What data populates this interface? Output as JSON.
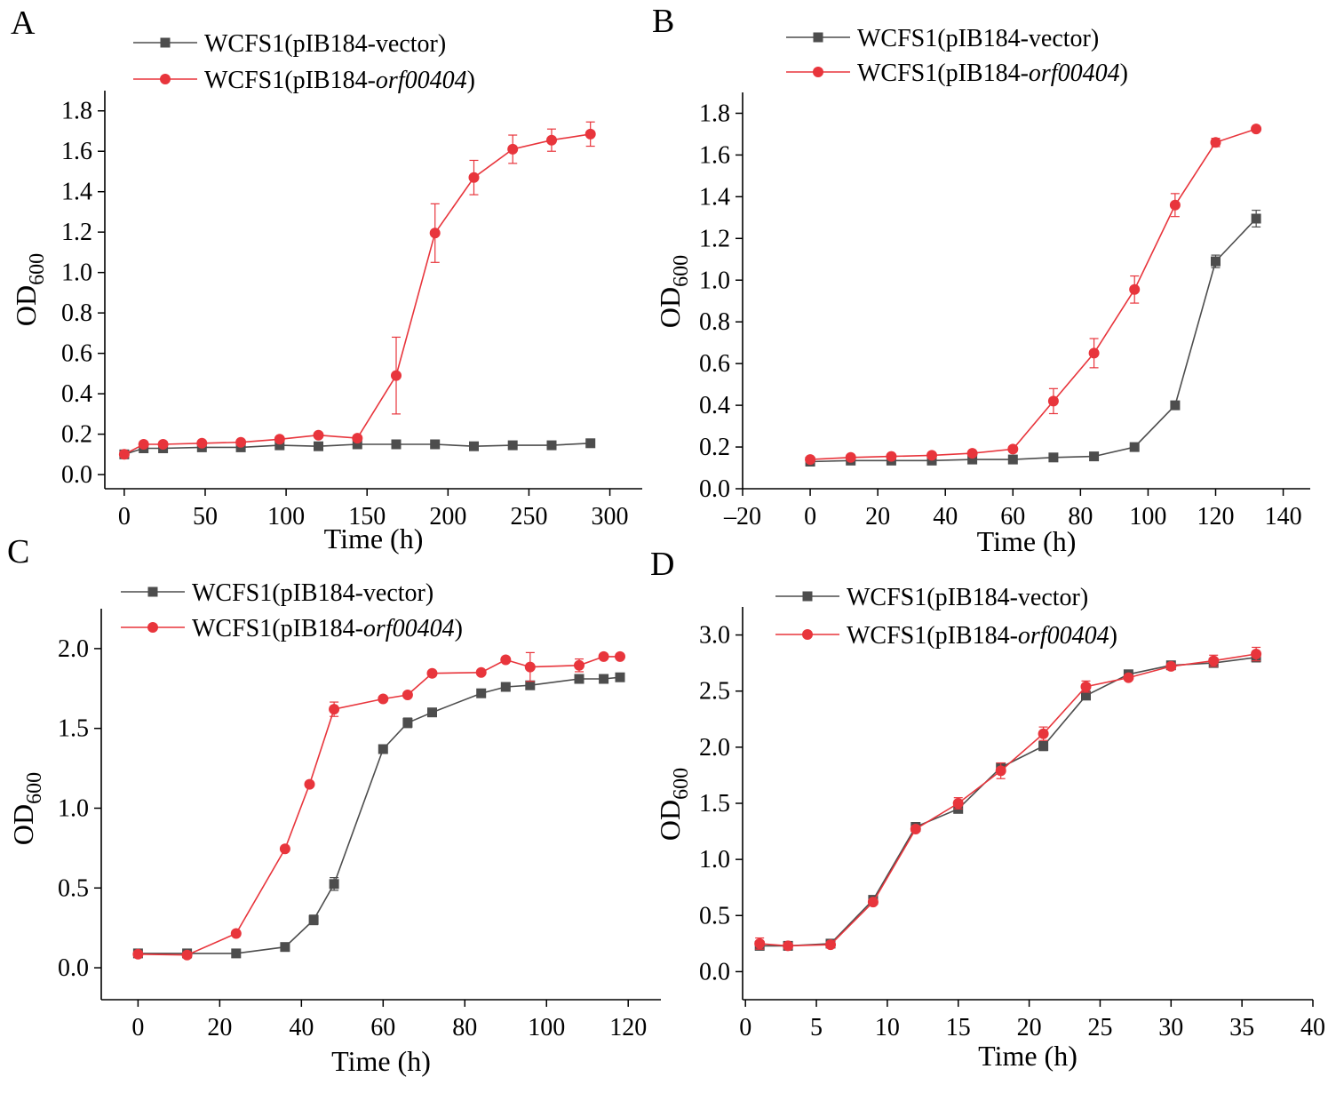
{
  "figure": {
    "background": "#ffffff",
    "colors": {
      "vector": "#4d4d4d",
      "orf": "#e8353c",
      "axis": "#000000"
    }
  },
  "chart_data": [
    {
      "type": "line",
      "panel": "A",
      "xlabel": "Time (h)",
      "ylabel_main": "OD",
      "ylabel_sub": "600",
      "xlim": [
        -12,
        320
      ],
      "ylim": [
        -0.07,
        1.9
      ],
      "xticks": [
        0,
        50,
        100,
        150,
        200,
        250,
        300
      ],
      "yticks": [
        0.0,
        0.2,
        0.4,
        0.6,
        0.8,
        1.0,
        1.2,
        1.4,
        1.6,
        1.8
      ],
      "ytick_decimals": 1,
      "legend": "top-left",
      "series": [
        {
          "name_prefix": "WCFS1(pIB184-",
          "name_italic": "",
          "name_suffix": "vector)",
          "marker": "square",
          "color": "#4d4d4d",
          "x": [
            0,
            12,
            24,
            48,
            72,
            96,
            120,
            144,
            168,
            192,
            216,
            240,
            264,
            288
          ],
          "y": [
            0.1,
            0.13,
            0.13,
            0.135,
            0.135,
            0.145,
            0.14,
            0.15,
            0.15,
            0.15,
            0.14,
            0.145,
            0.145,
            0.155
          ],
          "err": [
            0.005,
            0.005,
            0.005,
            0.005,
            0.005,
            0.005,
            0.005,
            0.005,
            0.005,
            0.005,
            0.005,
            0.005,
            0.005,
            0.005
          ]
        },
        {
          "name_prefix": "WCFS1(pIB184-",
          "name_italic": "orf00404",
          "name_suffix": ")",
          "marker": "circle",
          "color": "#e8353c",
          "x": [
            0,
            12,
            24,
            48,
            72,
            96,
            120,
            144,
            168,
            192,
            216,
            240,
            264,
            288
          ],
          "y": [
            0.1,
            0.15,
            0.15,
            0.155,
            0.16,
            0.175,
            0.195,
            0.18,
            0.49,
            1.195,
            1.47,
            1.61,
            1.655,
            1.685
          ],
          "err": [
            0.005,
            0.005,
            0.005,
            0.005,
            0.005,
            0.005,
            0.005,
            0.005,
            0.19,
            0.145,
            0.085,
            0.07,
            0.055,
            0.06
          ]
        }
      ]
    },
    {
      "type": "line",
      "panel": "B",
      "xlabel": "Time (h)",
      "ylabel_main": "OD",
      "ylabel_sub": "600",
      "xlim": [
        -20,
        148
      ],
      "ylim": [
        0.0,
        1.9
      ],
      "xticks": [
        -20,
        0,
        20,
        40,
        60,
        80,
        100,
        120,
        140
      ],
      "yticks": [
        0.0,
        0.2,
        0.4,
        0.6,
        0.8,
        1.0,
        1.2,
        1.4,
        1.6,
        1.8
      ],
      "ytick_decimals": 1,
      "legend": "top-left",
      "series": [
        {
          "name_prefix": "WCFS1(pIB184-",
          "name_italic": "",
          "name_suffix": "vector)",
          "marker": "square",
          "color": "#4d4d4d",
          "x": [
            0,
            12,
            24,
            36,
            48,
            60,
            72,
            84,
            96,
            108,
            120,
            132
          ],
          "y": [
            0.13,
            0.135,
            0.135,
            0.135,
            0.14,
            0.14,
            0.15,
            0.155,
            0.2,
            0.4,
            1.09,
            1.295
          ],
          "err": [
            0.005,
            0.005,
            0.005,
            0.005,
            0.005,
            0.005,
            0.005,
            0.005,
            0.01,
            0.01,
            0.03,
            0.04
          ]
        },
        {
          "name_prefix": "WCFS1(pIB184-",
          "name_italic": "orf00404",
          "name_suffix": ")",
          "marker": "circle",
          "color": "#e8353c",
          "x": [
            0,
            12,
            24,
            36,
            48,
            60,
            72,
            84,
            96,
            108,
            120,
            132
          ],
          "y": [
            0.14,
            0.15,
            0.155,
            0.16,
            0.17,
            0.19,
            0.42,
            0.65,
            0.955,
            1.36,
            1.66,
            1.725
          ],
          "err": [
            0.005,
            0.005,
            0.005,
            0.005,
            0.005,
            0.01,
            0.06,
            0.07,
            0.065,
            0.055,
            0.02,
            0.01
          ]
        }
      ]
    },
    {
      "type": "line",
      "panel": "C",
      "xlabel": "Time (h)",
      "ylabel_main": "OD",
      "ylabel_sub": "600",
      "xlim": [
        -9,
        128
      ],
      "ylim": [
        -0.2,
        2.25
      ],
      "xticks": [
        0,
        20,
        40,
        60,
        80,
        100,
        120
      ],
      "yticks": [
        0.0,
        0.5,
        1.0,
        1.5,
        2.0
      ],
      "ytick_decimals": 1,
      "legend": "top-left",
      "series": [
        {
          "name_prefix": "WCFS1(pIB184-",
          "name_italic": "",
          "name_suffix": "vector)",
          "marker": "square",
          "color": "#4d4d4d",
          "x": [
            0,
            12,
            24,
            36,
            43,
            48,
            60,
            66,
            72,
            84,
            90,
            96,
            108,
            114,
            118
          ],
          "y": [
            0.09,
            0.09,
            0.09,
            0.13,
            0.3,
            0.525,
            1.37,
            1.535,
            1.6,
            1.72,
            1.76,
            1.77,
            1.81,
            1.81,
            1.82
          ],
          "err": [
            0.01,
            0.01,
            0.01,
            0.01,
            0.03,
            0.04,
            0.01,
            0.03,
            0.01,
            0.01,
            0.01,
            0.02,
            0.01,
            0.01,
            0.01
          ]
        },
        {
          "name_prefix": "WCFS1(pIB184-",
          "name_italic": "orf00404",
          "name_suffix": ")",
          "marker": "circle",
          "color": "#e8353c",
          "x": [
            0,
            12,
            24,
            36,
            42,
            48,
            60,
            66,
            72,
            84,
            90,
            96,
            108,
            114,
            118
          ],
          "y": [
            0.085,
            0.08,
            0.215,
            0.745,
            1.15,
            1.62,
            1.685,
            1.71,
            1.845,
            1.85,
            1.93,
            1.885,
            1.895,
            1.95,
            1.95
          ],
          "err": [
            0.01,
            0.01,
            0.01,
            0.01,
            0.01,
            0.045,
            0.01,
            0.01,
            0.01,
            0.01,
            0.01,
            0.09,
            0.04,
            0.01,
            0.01
          ]
        }
      ]
    },
    {
      "type": "line",
      "panel": "D",
      "xlabel": "Time (h)",
      "ylabel_main": "OD",
      "ylabel_sub": "600",
      "xlim": [
        -0.2,
        40
      ],
      "ylim": [
        -0.25,
        3.25
      ],
      "xticks": [
        0,
        5,
        10,
        15,
        20,
        25,
        30,
        35,
        40
      ],
      "yticks": [
        0.0,
        0.5,
        1.0,
        1.5,
        2.0,
        2.5,
        3.0
      ],
      "ytick_decimals": 1,
      "legend": "top-left",
      "series": [
        {
          "name_prefix": "WCFS1(pIB184-",
          "name_italic": "",
          "name_suffix": "vector)",
          "marker": "square",
          "color": "#4d4d4d",
          "x": [
            1,
            3,
            6,
            9,
            12,
            15,
            18,
            21,
            24,
            27,
            30,
            33,
            36
          ],
          "y": [
            0.23,
            0.23,
            0.25,
            0.64,
            1.29,
            1.45,
            1.82,
            2.01,
            2.46,
            2.65,
            2.73,
            2.75,
            2.8
          ],
          "err": [
            0.01,
            0.01,
            0.01,
            0.02,
            0.02,
            0.03,
            0.03,
            0.04,
            0.03,
            0.02,
            0.02,
            0.03,
            0.04
          ]
        },
        {
          "name_prefix": "WCFS1(pIB184-",
          "name_italic": "orf00404",
          "name_suffix": ")",
          "marker": "circle",
          "color": "#e8353c",
          "x": [
            1,
            3,
            6,
            9,
            12,
            15,
            18,
            21,
            24,
            27,
            30,
            33,
            36
          ],
          "y": [
            0.25,
            0.23,
            0.24,
            0.62,
            1.27,
            1.5,
            1.79,
            2.12,
            2.54,
            2.62,
            2.72,
            2.77,
            2.83
          ],
          "err": [
            0.05,
            0.01,
            0.01,
            0.02,
            0.02,
            0.05,
            0.07,
            0.06,
            0.05,
            0.02,
            0.02,
            0.05,
            0.06
          ]
        }
      ]
    }
  ]
}
